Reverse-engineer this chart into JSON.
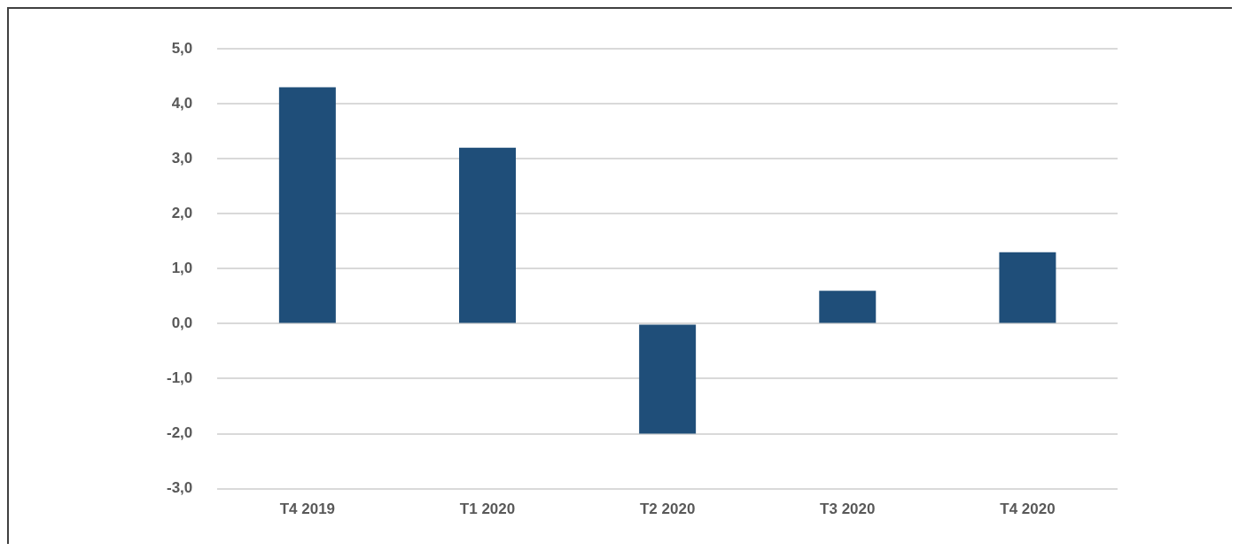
{
  "chart_data": {
    "type": "bar",
    "categories": [
      "T4 2019",
      "T1 2020",
      "T2 2020",
      "T3 2020",
      "T4 2020"
    ],
    "values": [
      4.3,
      3.2,
      -2.0,
      0.6,
      1.3
    ],
    "color": "#1f4e79",
    "ylim": [
      -3,
      5
    ],
    "yticks": [
      {
        "value": -3,
        "label": "-3,0"
      },
      {
        "value": -2,
        "label": "-2,0"
      },
      {
        "value": -1,
        "label": "-1,0"
      },
      {
        "value": 0,
        "label": "0,0"
      },
      {
        "value": 1,
        "label": "1,0"
      },
      {
        "value": 2,
        "label": "2,0"
      },
      {
        "value": 3,
        "label": "3,0"
      },
      {
        "value": 4,
        "label": "4,0"
      },
      {
        "value": 5,
        "label": "5,0"
      }
    ],
    "grid": "y",
    "legend": false
  }
}
